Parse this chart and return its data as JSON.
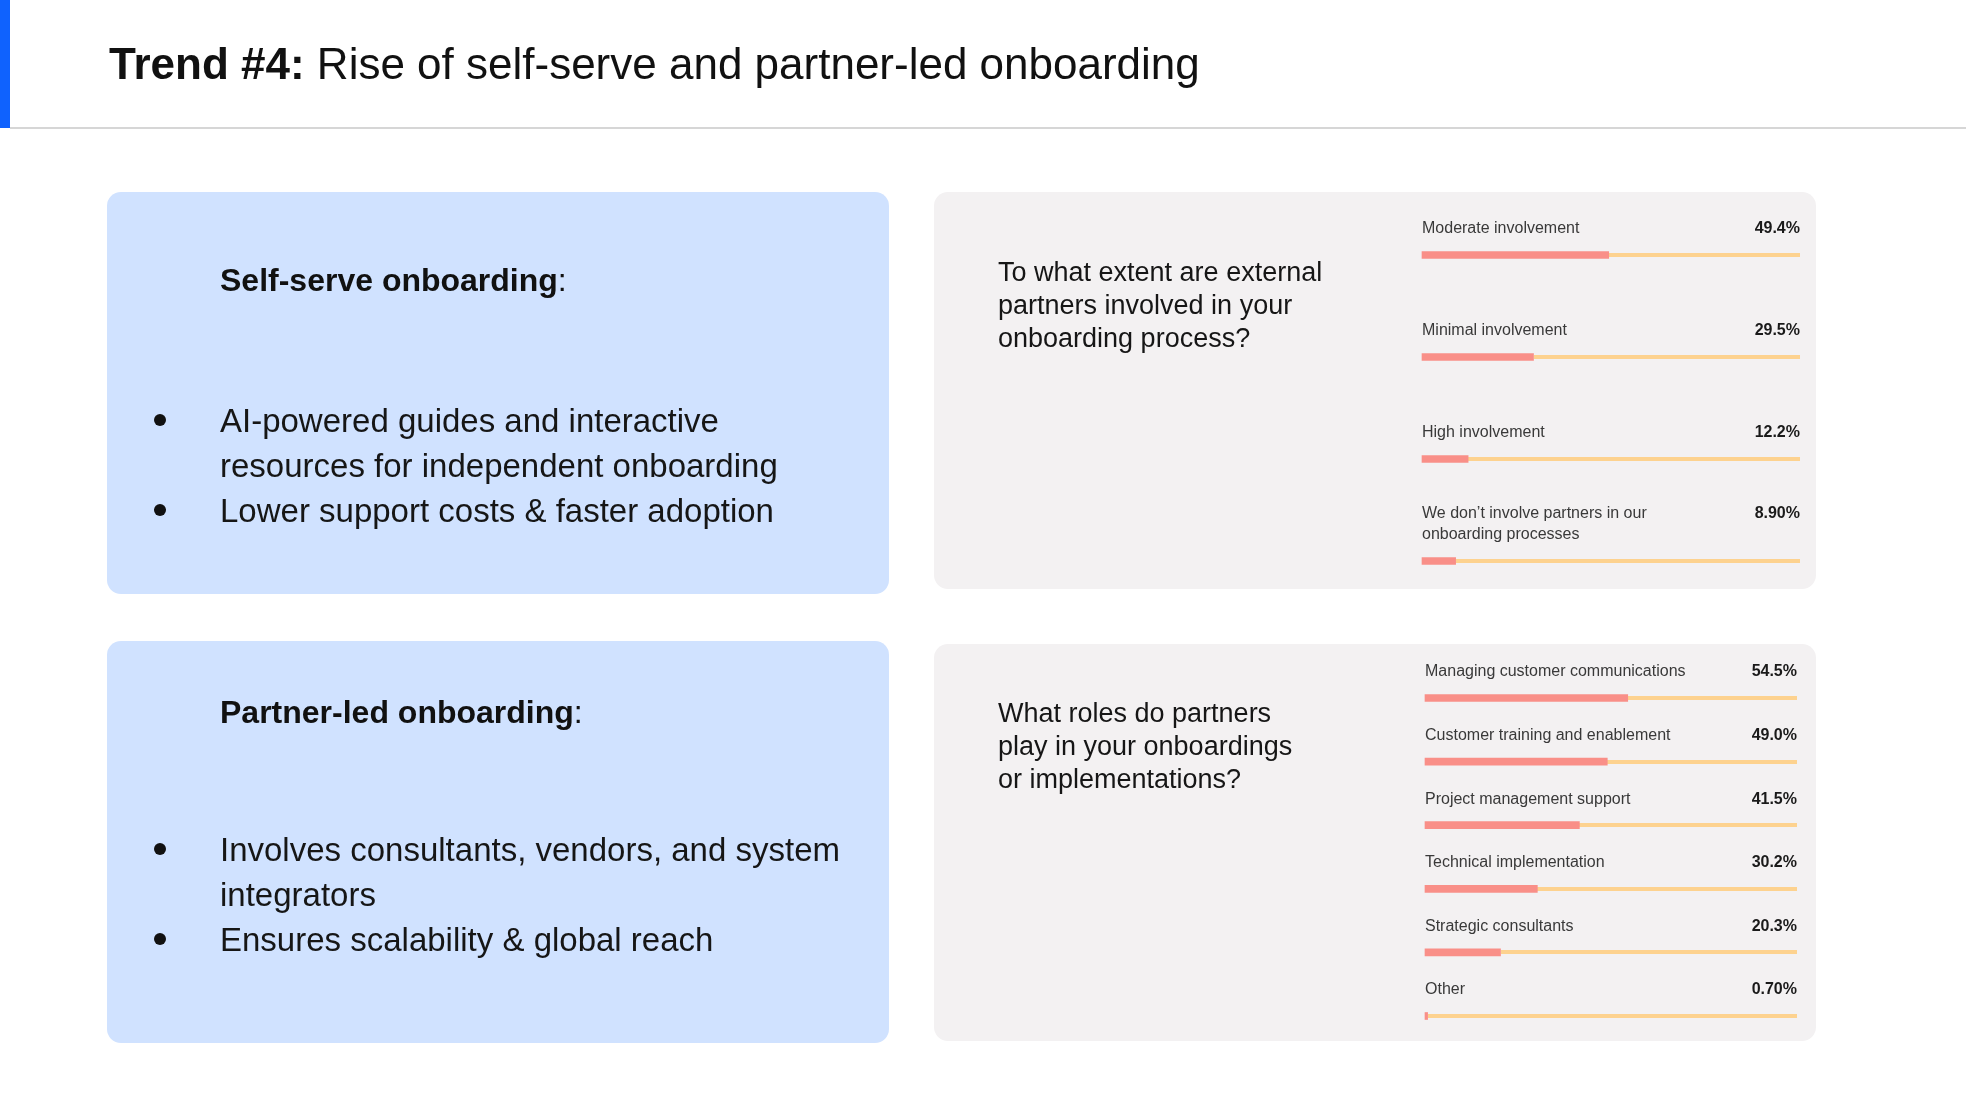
{
  "chart_data": [
    {
      "type": "other",
      "title": "Trend #4: Rise of self-serve and partner-led onboarding"
    },
    {
      "type": "other",
      "title": "Self-serve onboarding:",
      "annotations": [
        "AI-powered guides and interactive resources for independent onboarding",
        "Lower support costs & faster adoption"
      ]
    },
    {
      "type": "bar",
      "orientation": "horizontal",
      "title": "To what extent are external partners involved in your onboarding process?",
      "categories": [
        "Moderate involvement",
        "Minimal involvement",
        "High involvement",
        "We don’t involve partners in our onboarding processes"
      ],
      "values": [
        49.4,
        29.5,
        12.2,
        8.9
      ],
      "value_labels": [
        "49.4%",
        "29.5%",
        "12.2%",
        "8.90%"
      ],
      "color": "#f98f88",
      "xlim": [
        0,
        100
      ],
      "tick_labels": "y"
    },
    {
      "type": "other",
      "title": "Partner-led onboarding:",
      "annotations": [
        "Involves consultants, vendors, and system integrators",
        "Ensures scalability & global reach"
      ]
    },
    {
      "type": "bar",
      "orientation": "horizontal",
      "title": "What roles do partners play in your onboardings or implementations?",
      "categories": [
        "Managing customer communications",
        "Customer training and enablement",
        "Project management support",
        "Technical implementation",
        "Strategic consultants",
        "Other"
      ],
      "values": [
        54.5,
        49.0,
        41.5,
        30.2,
        20.3,
        0.7
      ],
      "value_labels": [
        "54.5%",
        "49.0%",
        "41.5%",
        "30.2%",
        "20.3%",
        "0.70%"
      ],
      "color": "#f98f88",
      "xlim": [
        0,
        100
      ],
      "tick_labels": "y"
    }
  ]
}
